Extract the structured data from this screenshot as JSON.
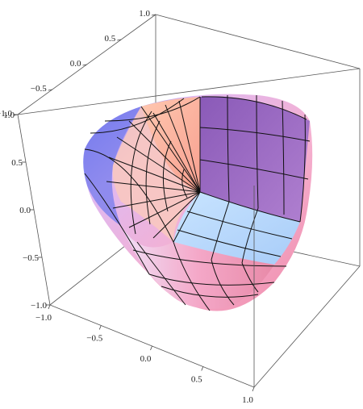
{
  "chart_data": {
    "type": "surface3d",
    "title": "",
    "xlabel": "",
    "ylabel": "",
    "zlabel": "",
    "axes": {
      "top_axis": {
        "range": [
          -1.0,
          1.0
        ],
        "ticks": [
          "−1.0",
          "−0.5",
          "0.0",
          "0.5",
          "1.0"
        ]
      },
      "left_vertical_axis": {
        "range": [
          -1.0,
          1.0
        ],
        "ticks": [
          "1.0",
          "0.5",
          "0.0",
          "−0.5",
          "−1.0"
        ]
      },
      "bottom_axis": {
        "range": [
          -1.0,
          1.0
        ],
        "ticks": [
          "−1.0",
          "−0.5",
          "0.0",
          "0.5",
          "1.0"
        ]
      }
    },
    "surface": {
      "description": "Rounded superquadric-like solid with one octant cut away, exposing three flat faces meeting at the origin",
      "color_scheme": [
        "#5a6cf0",
        "#f0a0d0",
        "#ffb0a0",
        "#9a60c0",
        "#b0d8ff"
      ],
      "mesh": true
    },
    "box": true,
    "grid": false
  }
}
